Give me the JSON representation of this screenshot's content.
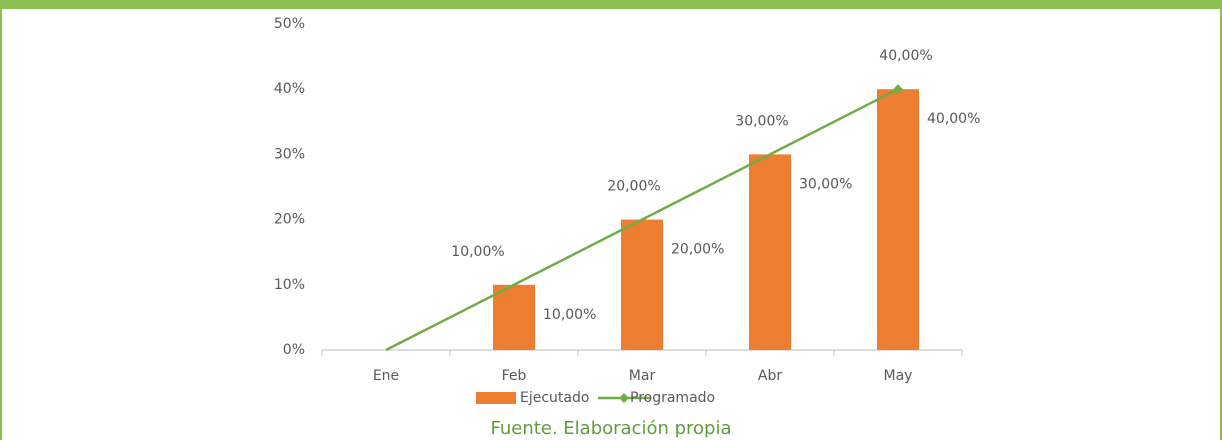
{
  "chart_data": {
    "type": "bar",
    "categories": [
      "Ene",
      "Feb",
      "Mar",
      "Abr",
      "May"
    ],
    "series": [
      {
        "name": "Ejecutado",
        "type": "bar",
        "color": "#ed7d31",
        "values": [
          0,
          10,
          20,
          30,
          40
        ],
        "value_labels": [
          null,
          "10,00%",
          "20,00%",
          "30,00%",
          "40,00%"
        ]
      },
      {
        "name": "Programado",
        "type": "line",
        "color": "#70ad47",
        "values": [
          0,
          10,
          20,
          30,
          40
        ],
        "value_labels": [
          null,
          "10,00%",
          "20,00%",
          "30,00%",
          "40,00%"
        ]
      }
    ],
    "ylim": [
      0,
      50
    ],
    "yticks": [
      {
        "value": 0,
        "label": "0%"
      },
      {
        "value": 10,
        "label": "10%"
      },
      {
        "value": 20,
        "label": "20%"
      },
      {
        "value": 30,
        "label": "30%"
      },
      {
        "value": 40,
        "label": "40%"
      },
      {
        "value": 50,
        "label": "50%"
      }
    ],
    "grid": false,
    "legend": "bottom"
  },
  "caption": "Fuente. Elaboración propia"
}
